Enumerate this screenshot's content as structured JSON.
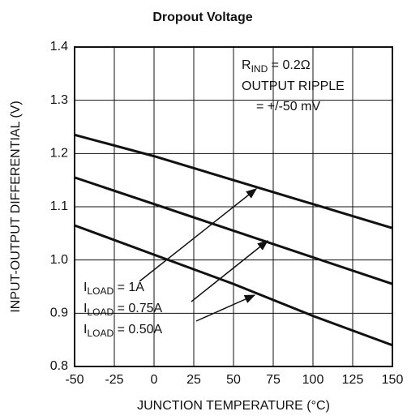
{
  "chart_data": {
    "type": "line",
    "title": "Dropout Voltage",
    "xlabel": "JUNCTION TEMPERATURE (°C)",
    "ylabel": "INPUT-OUTPUT DIFFERENTIAL (V)",
    "x": [
      -50,
      0,
      50,
      100,
      150
    ],
    "series": [
      {
        "label": {
          "main": "I",
          "sub": "LOAD",
          "rest": " = 1A"
        },
        "color": "#111111",
        "values": [
          1.235,
          1.195,
          1.15,
          1.105,
          1.06
        ]
      },
      {
        "label": {
          "main": "I",
          "sub": "LOAD",
          "rest": " = 0.75A"
        },
        "color": "#111111",
        "values": [
          1.155,
          1.105,
          1.055,
          1.005,
          0.955
        ]
      },
      {
        "label": {
          "main": "I",
          "sub": "LOAD",
          "rest": " = 0.50A"
        },
        "color": "#111111",
        "values": [
          1.065,
          1.01,
          0.955,
          0.895,
          0.84
        ]
      }
    ],
    "annotation": {
      "main": "R",
      "sub": "IND",
      "rest": " = 0.2Ω",
      "lines": [
        "OUTPUT RIPPLE",
        "= +/-50 mV"
      ]
    },
    "xlim": [
      -50,
      150
    ],
    "xticks": [
      -50,
      -25,
      0,
      25,
      50,
      75,
      100,
      125,
      150
    ],
    "ylim": [
      0.8,
      1.4
    ],
    "yticks": [
      0.8,
      0.9,
      {
        "value": 1,
        "label": "1.0"
      },
      1.1,
      1.2,
      1.3,
      1.4
    ],
    "grid": true
  }
}
